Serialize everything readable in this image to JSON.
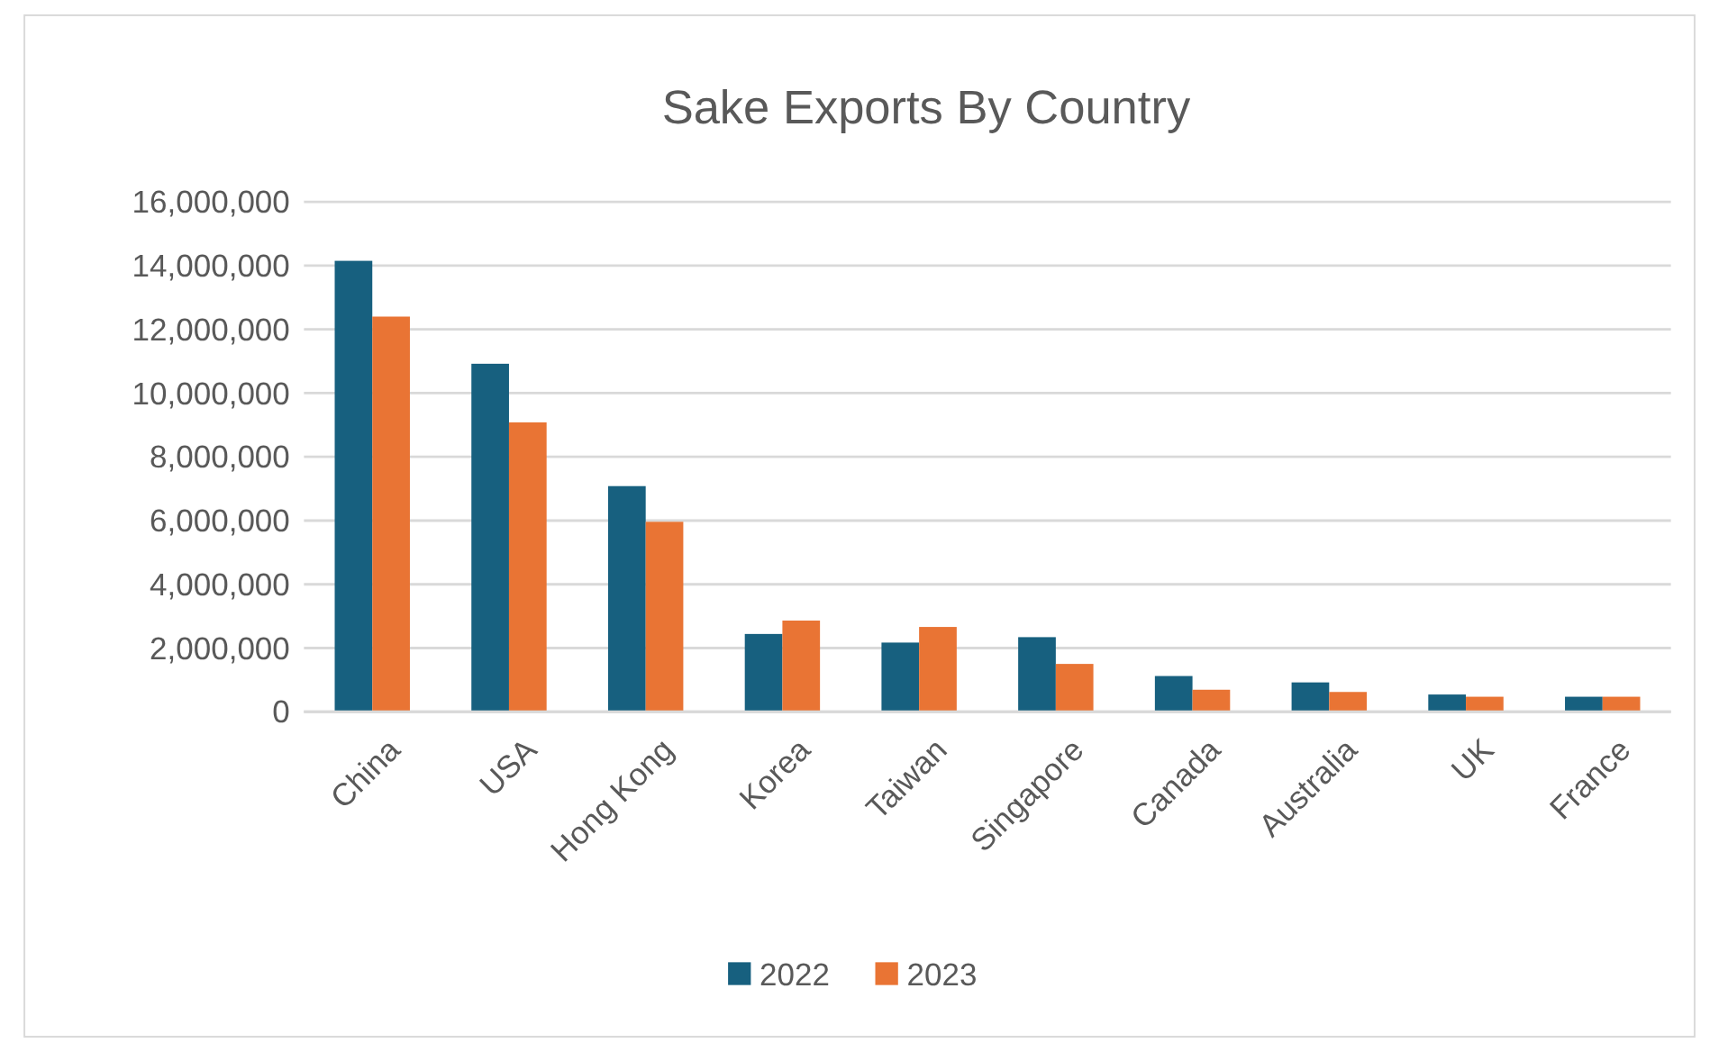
{
  "chart_data": {
    "type": "bar",
    "title": "Sake Exports By Country",
    "categories": [
      "China",
      "USA",
      "Hong Kong",
      "Korea",
      "Taiwan",
      "Singapore",
      "Canada",
      "Australia",
      "UK",
      "France"
    ],
    "series": [
      {
        "name": "2022",
        "color": "#17607f",
        "values": [
          14150000,
          10920000,
          7080000,
          2440000,
          2170000,
          2340000,
          1120000,
          920000,
          540000,
          470000
        ]
      },
      {
        "name": "2023",
        "color": "#e97434",
        "values": [
          12400000,
          9080000,
          5960000,
          2860000,
          2660000,
          1500000,
          690000,
          620000,
          470000,
          470000
        ]
      }
    ],
    "ylim": [
      0,
      16000000
    ],
    "yticks": [
      {
        "value": 0,
        "label": "0"
      },
      {
        "value": 2000000,
        "label": "2,000,000"
      },
      {
        "value": 4000000,
        "label": "4,000,000"
      },
      {
        "value": 6000000,
        "label": "6,000,000"
      },
      {
        "value": 8000000,
        "label": "8,000,000"
      },
      {
        "value": 10000000,
        "label": "10,000,000"
      },
      {
        "value": 12000000,
        "label": "12,000,000"
      },
      {
        "value": 14000000,
        "label": "14,000,000"
      },
      {
        "value": 16000000,
        "label": "16,000,000"
      }
    ],
    "grid": "y",
    "legend": "bottom"
  }
}
